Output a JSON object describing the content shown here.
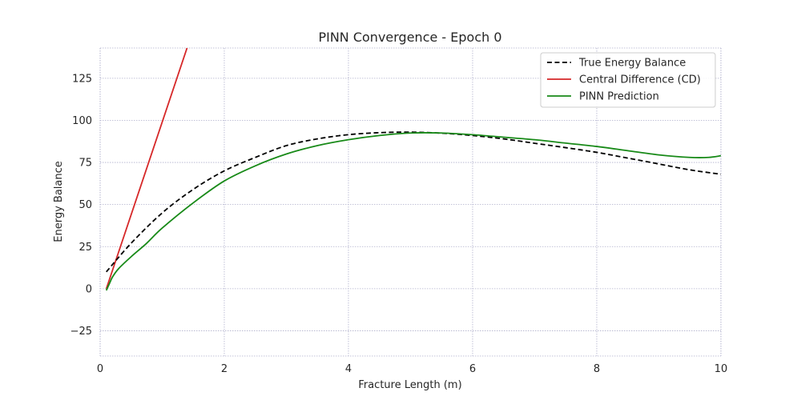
{
  "chart_data": {
    "type": "line",
    "title": "PINN Convergence - Epoch 0",
    "xlabel": "Fracture Length (m)",
    "ylabel": "Energy Balance",
    "xlim": [
      0,
      10
    ],
    "ylim": [
      -40,
      143
    ],
    "xticks": [
      0,
      2,
      4,
      6,
      8,
      10
    ],
    "yticks": [
      -25,
      0,
      25,
      50,
      75,
      100,
      125
    ],
    "xtick_labels": [
      "0",
      "2",
      "4",
      "6",
      "8",
      "10"
    ],
    "ytick_labels": [
      "−25",
      "0",
      "25",
      "50",
      "75",
      "100",
      "125"
    ],
    "grid": true,
    "legend_position": "top-right",
    "series": [
      {
        "name": "True Energy Balance",
        "color": "#000000",
        "dash": true,
        "x": [
          0.1,
          0.5,
          1,
          1.5,
          2,
          2.5,
          3,
          3.5,
          4,
          4.5,
          5,
          5.5,
          6,
          6.5,
          7,
          7.5,
          8,
          8.5,
          9,
          9.5,
          10
        ],
        "y": [
          10,
          27,
          45,
          59,
          70,
          78,
          85,
          89,
          91.5,
          92.7,
          93,
          92.4,
          91,
          89,
          86.4,
          83.8,
          81,
          77.6,
          74.1,
          70.6,
          68
        ]
      },
      {
        "name": "Central Difference (CD)",
        "color": "#d62728",
        "dash": false,
        "x": [
          0.1,
          1.4
        ],
        "y": [
          0,
          143
        ]
      },
      {
        "name": "PINN Prediction",
        "color": "#188a18",
        "dash": false,
        "x": [
          0.1,
          0.15,
          0.2,
          0.3,
          0.5,
          0.75,
          1,
          1.5,
          2,
          2.5,
          3,
          3.5,
          4,
          4.5,
          5,
          5.5,
          6,
          6.5,
          7,
          7.5,
          8,
          8.5,
          9,
          9.5,
          9.8,
          10
        ],
        "y": [
          -1,
          3,
          7,
          12,
          19,
          27,
          36,
          51,
          64,
          73,
          80,
          85,
          88.5,
          91,
          92.5,
          92.5,
          91.5,
          90,
          88.5,
          86.5,
          84.5,
          82,
          79.5,
          78,
          78,
          79
        ]
      }
    ]
  }
}
